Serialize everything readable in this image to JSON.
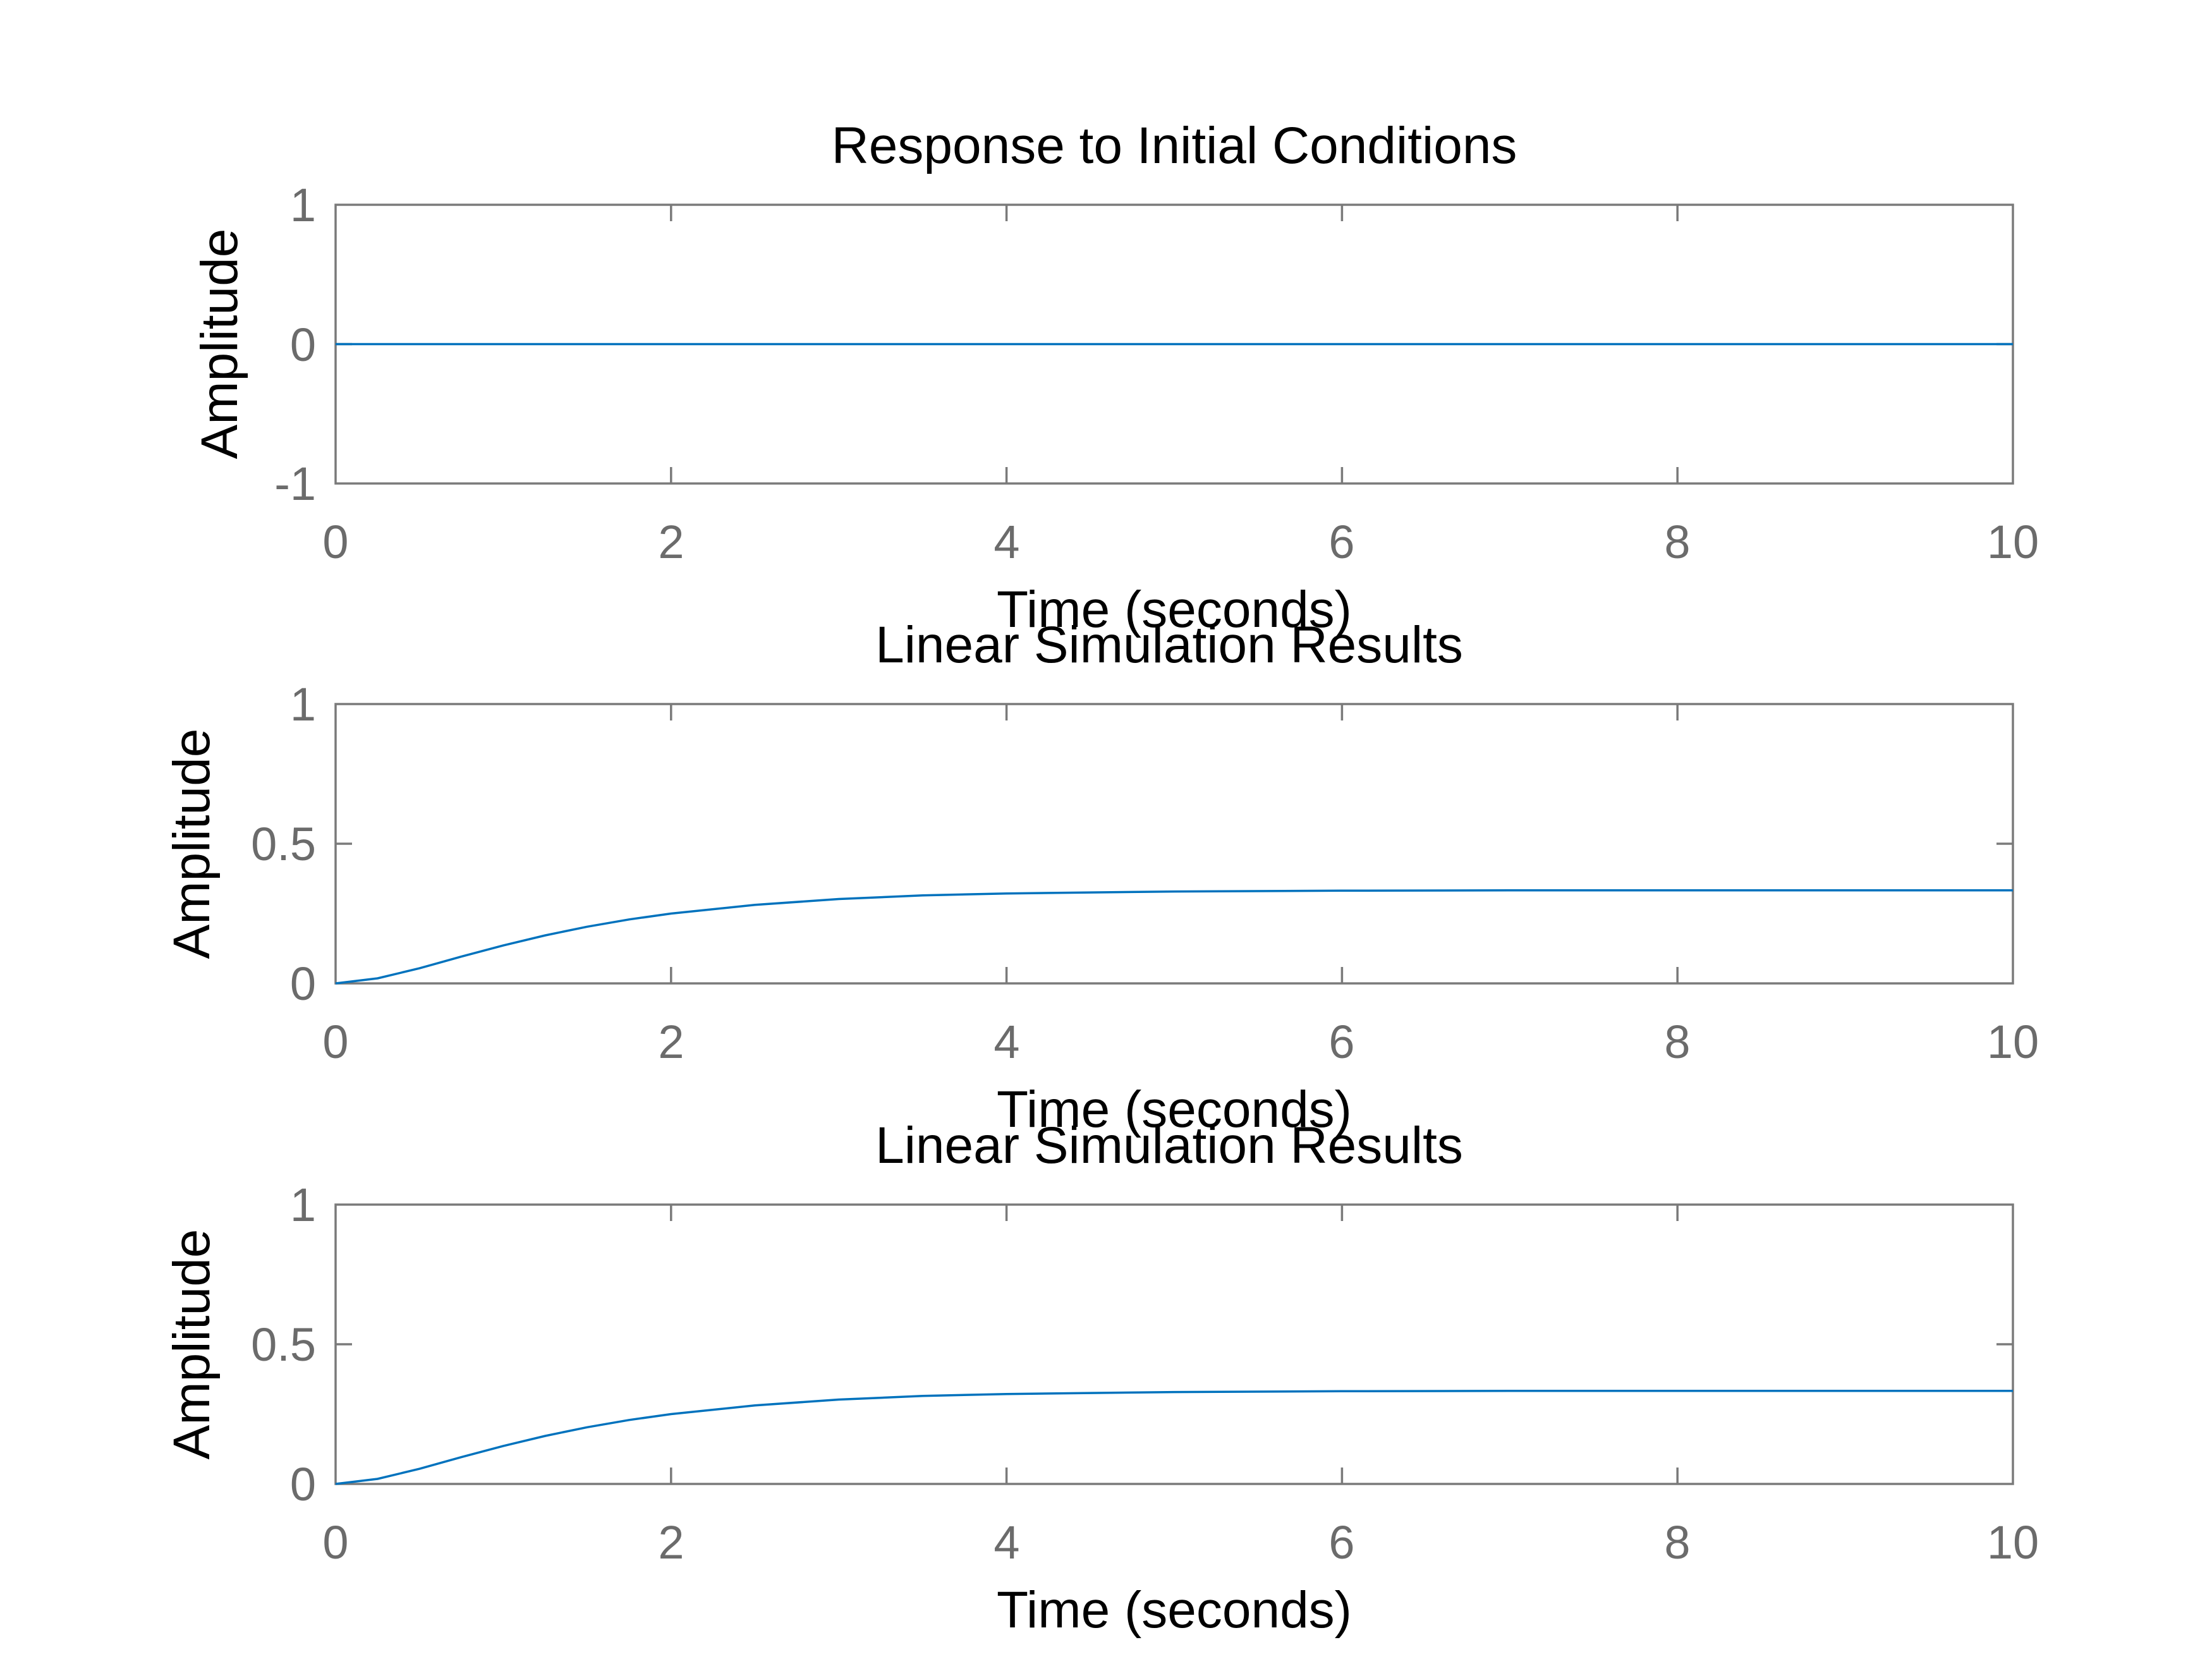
{
  "colors": {
    "series": "#0072bd",
    "axes": "#7a7a7a",
    "tick_text": "#6b6b6b",
    "text": "#000000"
  },
  "chart_data": [
    {
      "type": "line",
      "title": "Response to Initial Conditions",
      "xlabel": "Time (seconds)",
      "ylabel": "Amplitude",
      "xlim": [
        0,
        10
      ],
      "ylim": [
        -1,
        1
      ],
      "xticks": [
        0,
        2,
        4,
        6,
        8,
        10
      ],
      "yticks": [
        -1,
        0,
        1
      ],
      "xtick_labels": [
        "0",
        "2",
        "4",
        "6",
        "8",
        "10"
      ],
      "ytick_labels": [
        "-1",
        "0",
        "1"
      ],
      "grid": false,
      "series": [
        {
          "x": [
            0,
            2,
            4,
            6,
            8,
            10
          ],
          "y": [
            0,
            0,
            0,
            0,
            0,
            0
          ]
        }
      ]
    },
    {
      "type": "line",
      "title": "Linear Simulation Results",
      "xlabel": "Time (seconds)",
      "ylabel": "Amplitude",
      "xlim": [
        0,
        10
      ],
      "ylim": [
        0,
        1
      ],
      "xticks": [
        0,
        2,
        4,
        6,
        8,
        10
      ],
      "yticks": [
        0,
        0.5,
        1
      ],
      "xtick_labels": [
        "0",
        "2",
        "4",
        "6",
        "8",
        "10"
      ],
      "ytick_labels": [
        "0",
        "0.5",
        "1"
      ],
      "grid": false,
      "series": [
        {
          "x": [
            0,
            0.25,
            0.5,
            0.75,
            1,
            1.25,
            1.5,
            1.75,
            2,
            2.5,
            3,
            3.5,
            4,
            5,
            6,
            7,
            8,
            9,
            10
          ],
          "y": [
            0,
            0.018,
            0.054,
            0.096,
            0.136,
            0.172,
            0.203,
            0.229,
            0.25,
            0.281,
            0.302,
            0.315,
            0.322,
            0.329,
            0.332,
            0.333,
            0.333,
            0.333,
            0.333
          ]
        }
      ]
    },
    {
      "type": "line",
      "title": "Linear Simulation Results",
      "xlabel": "Time (seconds)",
      "ylabel": "Amplitude",
      "xlim": [
        0,
        10
      ],
      "ylim": [
        0,
        1
      ],
      "xticks": [
        0,
        2,
        4,
        6,
        8,
        10
      ],
      "yticks": [
        0,
        0.5,
        1
      ],
      "xtick_labels": [
        "0",
        "2",
        "4",
        "6",
        "8",
        "10"
      ],
      "ytick_labels": [
        "0",
        "0.5",
        "1"
      ],
      "grid": false,
      "series": [
        {
          "x": [
            0,
            0.25,
            0.5,
            0.75,
            1,
            1.25,
            1.5,
            1.75,
            2,
            2.5,
            3,
            3.5,
            4,
            5,
            6,
            7,
            8,
            9,
            10
          ],
          "y": [
            0,
            0.018,
            0.054,
            0.096,
            0.136,
            0.172,
            0.203,
            0.229,
            0.25,
            0.281,
            0.302,
            0.315,
            0.322,
            0.329,
            0.332,
            0.333,
            0.333,
            0.333,
            0.333
          ]
        }
      ]
    }
  ]
}
